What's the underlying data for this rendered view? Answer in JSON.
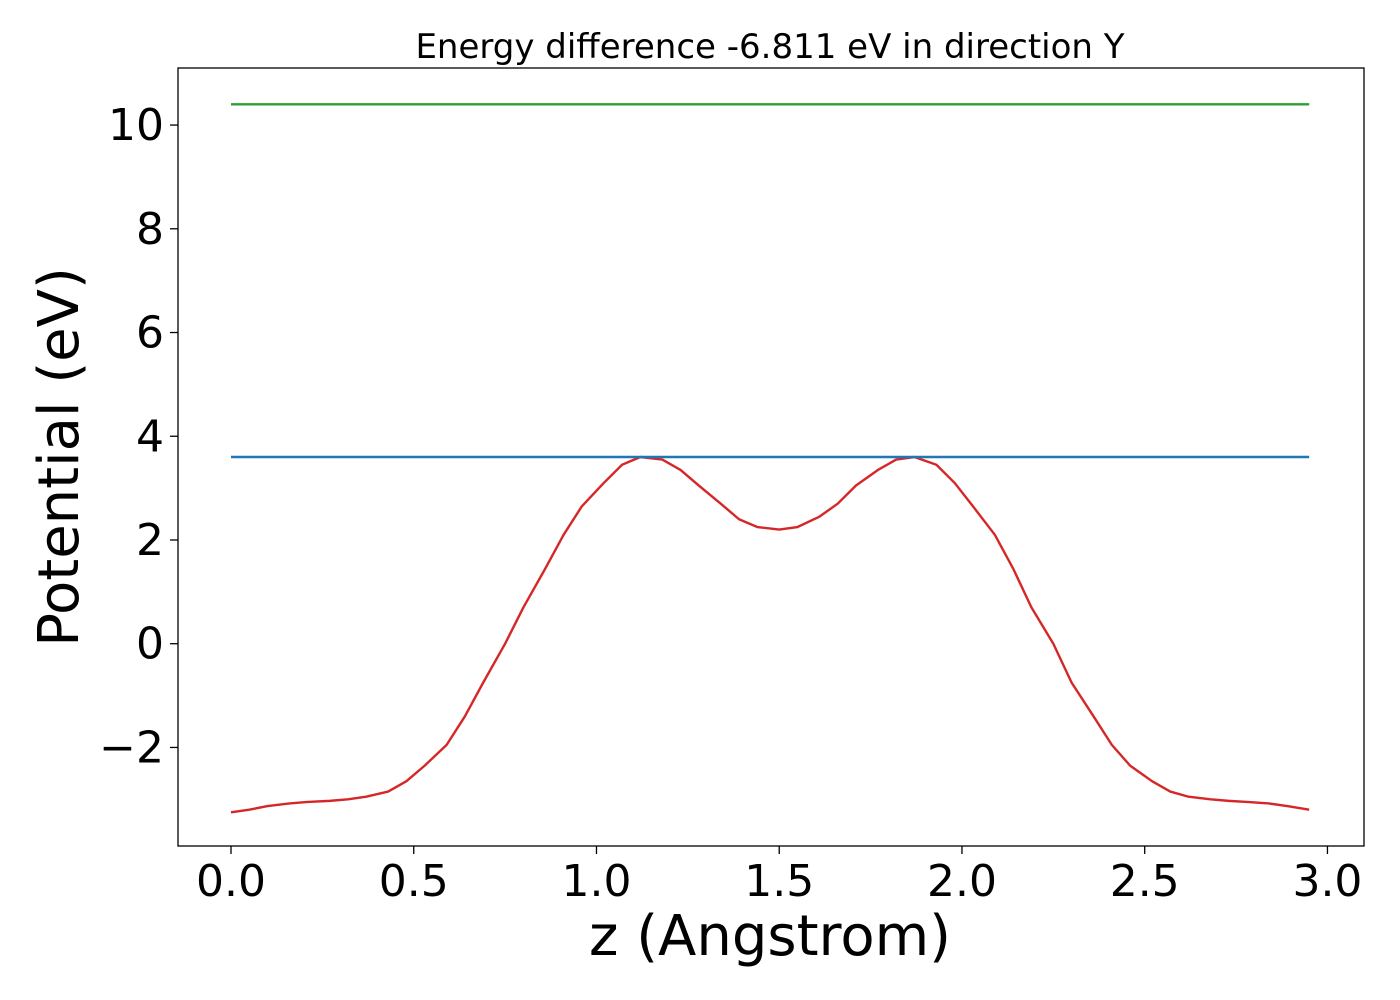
{
  "chart_data": {
    "type": "line",
    "title": "Energy difference -6.811 eV in direction Y",
    "xlabel": "z (Angstrom)",
    "ylabel": "Potential (eV)",
    "xlim": [
      -0.145,
      3.1
    ],
    "ylim": [
      -3.9,
      11.1
    ],
    "xticks": [
      0.0,
      0.5,
      1.0,
      1.5,
      2.0,
      2.5,
      3.0
    ],
    "xtick_labels": [
      "0.0",
      "0.5",
      "1.0",
      "1.5",
      "2.0",
      "2.5",
      "3.0"
    ],
    "yticks": [
      -2,
      0,
      2,
      4,
      6,
      8,
      10
    ],
    "ytick_labels": [
      "−2",
      "0",
      "2",
      "4",
      "6",
      "8",
      "10"
    ],
    "grid": false,
    "legend": "none",
    "series": [
      {
        "color": "#d62728",
        "x": [
          0.0,
          0.05,
          0.1,
          0.16,
          0.21,
          0.27,
          0.32,
          0.37,
          0.43,
          0.48,
          0.53,
          0.59,
          0.64,
          0.69,
          0.75,
          0.8,
          0.86,
          0.91,
          0.96,
          1.02,
          1.07,
          1.12,
          1.18,
          1.23,
          1.28,
          1.34,
          1.39,
          1.44,
          1.5,
          1.55,
          1.61,
          1.66,
          1.71,
          1.77,
          1.82,
          1.87,
          1.93,
          1.98,
          2.03,
          2.09,
          2.14,
          2.19,
          2.25,
          2.3,
          2.36,
          2.41,
          2.46,
          2.52,
          2.57,
          2.62,
          2.68,
          2.73,
          2.78,
          2.84,
          2.89,
          2.95
        ],
        "values": [
          -3.25,
          -3.2,
          -3.13,
          -3.08,
          -3.05,
          -3.03,
          -3.0,
          -2.95,
          -2.85,
          -2.65,
          -2.35,
          -1.95,
          -1.4,
          -0.75,
          0.0,
          0.7,
          1.45,
          2.1,
          2.65,
          3.1,
          3.45,
          3.6,
          3.55,
          3.35,
          3.05,
          2.7,
          2.4,
          2.25,
          2.2,
          2.25,
          2.45,
          2.7,
          3.05,
          3.35,
          3.55,
          3.6,
          3.45,
          3.1,
          2.65,
          2.1,
          1.45,
          0.7,
          0.0,
          -0.75,
          -1.4,
          -1.95,
          -2.35,
          -2.65,
          -2.85,
          -2.95,
          -3.0,
          -3.03,
          -3.05,
          -3.08,
          -3.13,
          -3.2
        ]
      },
      {
        "color": "#1f77b4",
        "x": [
          0.0,
          2.95
        ],
        "values": [
          3.6,
          3.6
        ]
      },
      {
        "color": "#2ca02c",
        "x": [
          0.0,
          2.95
        ],
        "values": [
          10.4,
          10.4
        ]
      }
    ]
  }
}
